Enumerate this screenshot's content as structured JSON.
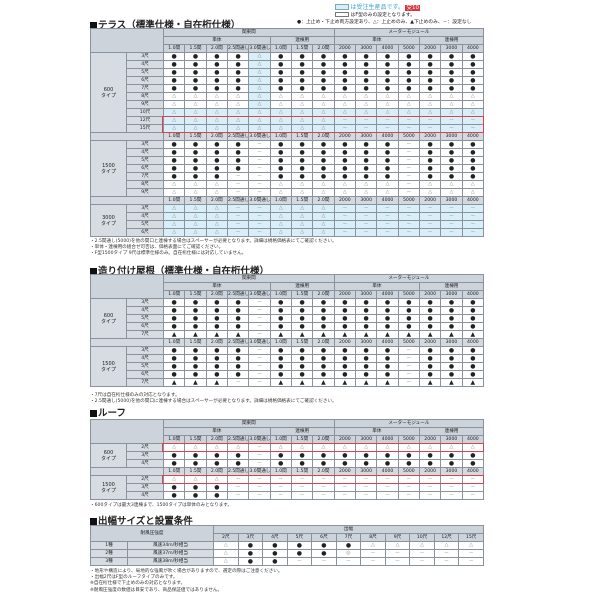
{
  "legend": {
    "made_to_order": "は受注生産品です。",
    "badge": "受10",
    "f_type_only": "はF型のみの設定となります。",
    "symbols": "●：上止め・下止め両方設定あり、△：上止めのみ、▲下止めのみ、－：設定なし",
    "colors": {
      "made_to_order": "#d8eef8",
      "badge": "#d9363e",
      "highlight_box": "#d9434c"
    }
  },
  "header": {
    "kanto": "関東間",
    "meter": "メーターモジュール",
    "single": "単体",
    "linked": "連棟用",
    "cols": [
      "1.0間",
      "1.5間",
      "2.0間",
      "2.5間通し",
      "3.0間通し",
      "1.0間",
      "1.5間",
      "2.0間",
      "2000",
      "3000",
      "4000",
      "5000",
      "2000",
      "3000",
      "4000"
    ]
  },
  "sections": [
    {
      "title": "テラス（標準仕様・自在桁仕様）",
      "groups": [
        {
          "type": "600",
          "type_suffix": "タイプ",
          "rows": [
            {
              "size": "3尺",
              "cells": "●●●●△●●●●●●●●●●"
            },
            {
              "size": "4尺",
              "cells": "●●●●△●●●●●●●●●●"
            },
            {
              "size": "5尺",
              "cells": "●●●●△●●●●●●●●●●"
            },
            {
              "size": "6尺",
              "cells": "●●●●△●●●●●●●●●●"
            },
            {
              "size": "7尺",
              "cells": "●●●●△●●●●●●●●●●"
            },
            {
              "size": "8尺",
              "cells": "△△△△△△△△△△△△△△△"
            },
            {
              "size": "9尺",
              "cells": "△△△△△△△△△△△△△△△"
            },
            {
              "size": "10尺",
              "cells": "△△△△△△△△△△△△△△△"
            },
            {
              "size": "12尺",
              "cells": "△△△△△△△△－－－－－－－"
            },
            {
              "size": "15尺",
              "cells": "△△△△△△△△－－－－－－－"
            }
          ]
        },
        {
          "type": "1500",
          "type_suffix": "タイプ",
          "rows": [
            {
              "size": "3尺",
              "cells": "●●●●－●●●●●●－●●●"
            },
            {
              "size": "4尺",
              "cells": "●●●●－●●●●●●－●●●"
            },
            {
              "size": "5尺",
              "cells": "●●●●－●●●●●●－●●●"
            },
            {
              "size": "6尺",
              "cells": "●●●●－●●●●●●－●●●"
            },
            {
              "size": "7尺",
              "cells": "●●●－－●●●●●●－●●●"
            },
            {
              "size": "8尺",
              "cells": "△△△－－△△△△△△－△△△"
            },
            {
              "size": "9尺",
              "cells": "△△△－－△△△△△△－△△△"
            }
          ]
        },
        {
          "type": "3000",
          "type_suffix": "タイプ",
          "rows": [
            {
              "size": "3尺",
              "cells": "△△△－－△△△－－－－－－－"
            },
            {
              "size": "4尺",
              "cells": "△△△－－△△△－－－－－－－"
            },
            {
              "size": "5尺",
              "cells": "△△△－－△△△－－－－－－－"
            },
            {
              "size": "6尺",
              "cells": "△△△－－△△△－－－－－－－"
            }
          ]
        }
      ],
      "notes": [
        "・2.5間通し(5000)を他の間口と連棟する場合はスペーサーが必要となります。詳細は規格価格表にてご確認ください。",
        "・単体・連棟用の組合せ可否は、価格表面にてご確認ください。",
        "・F型1500タイプ 9尺は標準仕様のみ。自在桁仕様には対応していません。"
      ]
    },
    {
      "title": "造り付け屋根（標準仕様・自在桁仕様）",
      "groups": [
        {
          "type": "600",
          "type_suffix": "タイプ",
          "rows": [
            {
              "size": "3尺",
              "cells": "●●●●－●●●●●●●●●●"
            },
            {
              "size": "4尺",
              "cells": "●●●●－●●●●●●●●●●"
            },
            {
              "size": "5尺",
              "cells": "●●●●－●●●●●●●●●●"
            },
            {
              "size": "6尺",
              "cells": "●●●●－●●●●●●●●●●"
            },
            {
              "size": "7尺",
              "cells": "▲▲▲▲－▲▲▲▲▲▲▲▲▲▲"
            }
          ]
        },
        {
          "type": "1500",
          "type_suffix": "タイプ",
          "rows": [
            {
              "size": "3尺",
              "cells": "●●●●－●●●●●●－●●●"
            },
            {
              "size": "4尺",
              "cells": "●●●●－●●●●●●－●●●"
            },
            {
              "size": "5尺",
              "cells": "●●●●－●●●●●●－●●●"
            },
            {
              "size": "6尺",
              "cells": "●●●●－●●●●●●－●●●"
            },
            {
              "size": "7尺",
              "cells": "▲▲▲－－▲▲▲▲▲▲－▲▲▲"
            }
          ]
        }
      ],
      "notes": [
        "・7尺は自在桁仕様のみの対応となります。",
        "・2.5間通し(5000)を他の間口に連棟する場合はスペーサーが必要となります。詳細は規格価格表にてご確認ください。"
      ]
    },
    {
      "title": "ルーフ",
      "groups": [
        {
          "type": "600",
          "type_suffix": "タイプ",
          "rows": [
            {
              "size": "2尺",
              "cells": "△△△△－△△△△△△△△△△"
            },
            {
              "size": "3尺",
              "cells": "●●●●－●●●●●●●●●●"
            },
            {
              "size": "4尺",
              "cells": "●●●●－●●●●●●●●●●"
            }
          ]
        },
        {
          "type": "1500",
          "type_suffix": "タイプ",
          "rows": [
            {
              "size": "2尺",
              "cells": "△△△－－－－－－－－－－－－"
            },
            {
              "size": "3尺",
              "cells": "●●●－－－－－－－－－－－－"
            },
            {
              "size": "4尺",
              "cells": "●●●－－－－－－－－－－－－"
            }
          ]
        }
      ],
      "notes": [
        "・600タイプは最大3連棟まで、1500タイプは単体のみとなります。"
      ]
    }
  ],
  "wind": {
    "title": "出幅サイズと設置条件",
    "label": "耐風圧強度",
    "projection": "出幅",
    "cols": [
      "2尺",
      "3尺",
      "4尺",
      "5尺",
      "6尺",
      "7尺",
      "8尺",
      "9尺",
      "10尺",
      "12尺",
      "15尺"
    ],
    "rows": [
      {
        "grade": "1種",
        "speed": "風速34m/秒相当",
        "cells": "△●●●●●△△△△△"
      },
      {
        "grade": "2種",
        "speed": "風速37m/秒相当",
        "cells": "△●●●●◎－－－－－"
      },
      {
        "grade": "3種",
        "speed": "風速38m/秒相当",
        "cells": "△●●－－－－－－－－"
      }
    ],
    "notes": [
      "・地形や構造により、局地的な強風が吹く場合がありますので、選定の際はご注意ください。",
      "・出幅2尺はF型のルーフタイプのみです。",
      "※自在桁仕様で下止めのみの対応となります。",
      "※耐風圧強度の数値は目安であり、商品保証値ではありません。"
    ]
  }
}
